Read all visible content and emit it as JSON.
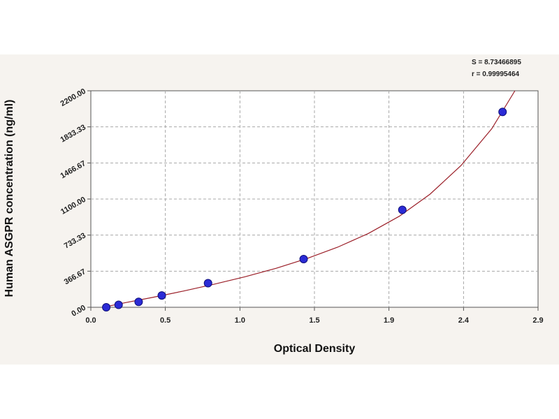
{
  "chart_data": {
    "type": "scatter",
    "xlabel": "Optical Density",
    "ylabel": "Human ASGPR concentration (ng/ml)",
    "xlim": [
      0.0,
      2.9
    ],
    "ylim": [
      0.0,
      2200.0
    ],
    "x_ticks": [
      "0.0",
      "0.5",
      "1.0",
      "1.5",
      "1.9",
      "2.4",
      "2.9"
    ],
    "x_tick_values": [
      0.0,
      0.483,
      0.967,
      1.45,
      1.933,
      2.417,
      2.9
    ],
    "y_ticks": [
      "0.00",
      "366.67",
      "733.33",
      "1100.00",
      "1466.67",
      "1833.33",
      "2200.00"
    ],
    "y_tick_values": [
      0,
      366.67,
      733.33,
      1100,
      1466.67,
      1833.33,
      2200
    ],
    "grid": true,
    "stats": {
      "s_text": "S = 8.73466895",
      "r_text": "r = 0.99995464"
    },
    "series": [
      {
        "points": [
          {
            "x": 0.1,
            "y": 0
          },
          {
            "x": 0.18,
            "y": 25
          },
          {
            "x": 0.31,
            "y": 55
          },
          {
            "x": 0.46,
            "y": 120
          },
          {
            "x": 0.76,
            "y": 245
          },
          {
            "x": 1.38,
            "y": 490
          },
          {
            "x": 2.02,
            "y": 990
          },
          {
            "x": 2.67,
            "y": 1985
          }
        ]
      }
    ],
    "fit_curve": [
      {
        "x": 0.08,
        "y": 0
      },
      {
        "x": 0.2,
        "y": 40
      },
      {
        "x": 0.4,
        "y": 100
      },
      {
        "x": 0.6,
        "y": 165
      },
      {
        "x": 0.8,
        "y": 235
      },
      {
        "x": 1.0,
        "y": 310
      },
      {
        "x": 1.2,
        "y": 395
      },
      {
        "x": 1.4,
        "y": 495
      },
      {
        "x": 1.6,
        "y": 610
      },
      {
        "x": 1.8,
        "y": 750
      },
      {
        "x": 2.0,
        "y": 925
      },
      {
        "x": 2.2,
        "y": 1150
      },
      {
        "x": 2.4,
        "y": 1440
      },
      {
        "x": 2.6,
        "y": 1815
      },
      {
        "x": 2.75,
        "y": 2200
      }
    ],
    "colors": {
      "point": "#2b2bd6",
      "point_edge": "#10107a",
      "curve": "#9b1f28",
      "grid": "#a8a8a8",
      "plot_bg": "#ffffff",
      "frame_bg": "#f6f3ef"
    }
  }
}
